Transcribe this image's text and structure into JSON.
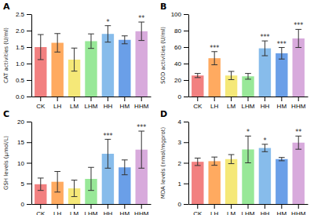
{
  "chart_data": [
    {
      "type": "bar",
      "title": "A",
      "ylabel": "CAT activities (U/ml)",
      "categories": [
        "CK",
        "LH",
        "LM",
        "LHM",
        "HH",
        "HM",
        "HHM"
      ],
      "values": [
        1.5,
        1.63,
        1.12,
        1.68,
        1.9,
        1.72,
        1.98
      ],
      "errors": [
        0.38,
        0.28,
        0.35,
        0.22,
        0.25,
        0.12,
        0.28
      ],
      "annotations": [
        null,
        null,
        null,
        null,
        "*",
        null,
        "**"
      ],
      "colors": [
        "#F28080",
        "#FFAA60",
        "#F5E878",
        "#98E898",
        "#87BCEB",
        "#6A9FE8",
        "#D8AADC"
      ],
      "ylim": [
        0,
        2.5
      ],
      "yticks": [
        {
          "value": 0.0,
          "label": "0.0"
        },
        0.5,
        {
          "value": 1.0,
          "label": "1.0"
        },
        1.5,
        {
          "value": 2.0,
          "label": "2.0"
        },
        2.5
      ],
      "grid": false
    },
    {
      "type": "bar",
      "title": "B",
      "ylabel": "SOD activities (U/ml)",
      "categories": [
        "CK",
        "LH",
        "LM",
        "LHM",
        "HH",
        "HM",
        "HHM"
      ],
      "values": [
        25.5,
        46.5,
        25.5,
        24.5,
        58.5,
        52.5,
        70.5
      ],
      "errors": [
        2.5,
        8.0,
        5.0,
        3.5,
        9.0,
        7.0,
        11.0
      ],
      "annotations": [
        null,
        "***",
        null,
        null,
        "***",
        "***",
        "***"
      ],
      "colors": [
        "#F28080",
        "#FFAA60",
        "#F5E878",
        "#98E898",
        "#87BCEB",
        "#6A9FE8",
        "#D8AADC"
      ],
      "ylim": [
        0,
        100
      ],
      "yticks": [
        0,
        20,
        40,
        60,
        80,
        100
      ],
      "grid": false
    },
    {
      "type": "bar",
      "title": "C",
      "ylabel": "GSH levels (μmol/L)",
      "categories": [
        "CK",
        "LH",
        "LM",
        "LHM",
        "HH",
        "HM",
        "HHM"
      ],
      "values": [
        4.8,
        5.4,
        3.8,
        6.1,
        12.2,
        8.9,
        13.2
      ],
      "errors": [
        1.5,
        2.5,
        2.0,
        2.8,
        3.5,
        1.8,
        4.5
      ],
      "annotations": [
        null,
        null,
        null,
        null,
        "***",
        null,
        "***"
      ],
      "colors": [
        "#F28080",
        "#FFAA60",
        "#F5E878",
        "#98E898",
        "#87BCEB",
        "#6A9FE8",
        "#D8AADC"
      ],
      "ylim": [
        0,
        20
      ],
      "yticks": [
        0,
        5,
        10,
        15,
        20
      ],
      "grid": false
    },
    {
      "type": "bar",
      "title": "D",
      "ylabel": "MDA levels (nmol/mgprot)",
      "categories": [
        "CK",
        "LH",
        "LM",
        "LHM",
        "HH",
        "HM",
        "HHM"
      ],
      "values": [
        2.05,
        2.08,
        2.18,
        2.65,
        2.72,
        2.18,
        2.98
      ],
      "errors": [
        0.18,
        0.2,
        0.22,
        0.65,
        0.18,
        0.08,
        0.32
      ],
      "annotations": [
        null,
        null,
        null,
        "*",
        "*",
        null,
        "**"
      ],
      "colors": [
        "#F28080",
        "#FFAA60",
        "#F5E878",
        "#98E898",
        "#87BCEB",
        "#6A9FE8",
        "#D8AADC"
      ],
      "ylim": [
        0,
        4
      ],
      "yticks": [
        0,
        1,
        2,
        3,
        4
      ],
      "grid": false
    }
  ]
}
